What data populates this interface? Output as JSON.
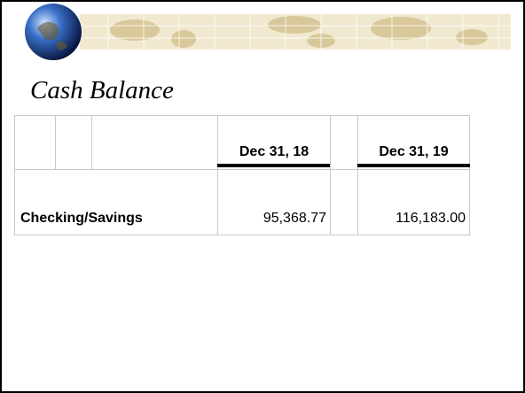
{
  "title": "Cash Balance",
  "table": {
    "columns": [
      "Dec 31, 18",
      "Dec 31, 19"
    ],
    "rows": [
      [
        "Checking/Savings",
        "95,368.77",
        "116,183.00"
      ]
    ]
  }
}
